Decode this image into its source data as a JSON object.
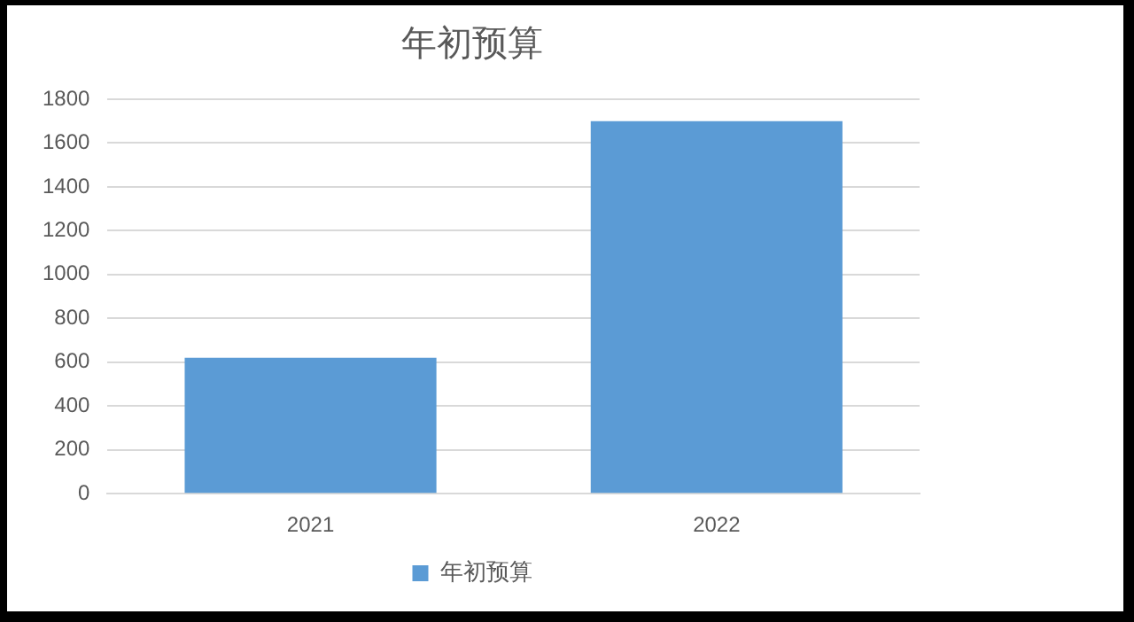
{
  "chart_data": {
    "type": "bar",
    "title": "年初预算",
    "categories": [
      "2021",
      "2022"
    ],
    "series": [
      {
        "name": "年初预算",
        "color": "#5b9bd5",
        "values": [
          620,
          1700
        ]
      }
    ],
    "ylim": [
      0,
      1800
    ],
    "yticks": [
      0,
      200,
      400,
      600,
      800,
      1000,
      1200,
      1400,
      1600,
      1800
    ],
    "grid": "y",
    "legend": "bottom"
  }
}
